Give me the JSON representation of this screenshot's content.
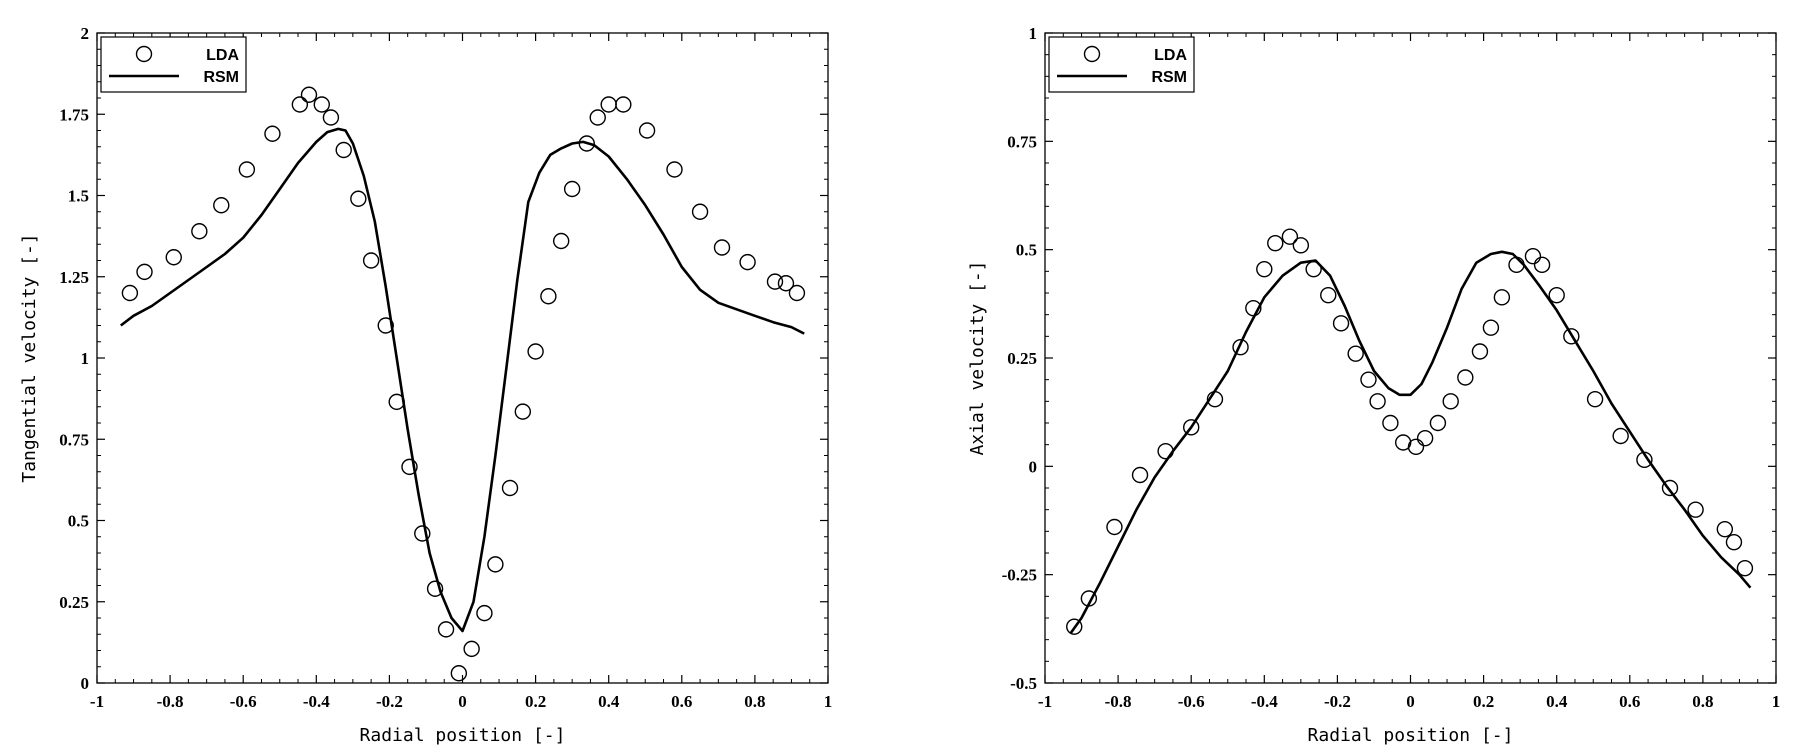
{
  "chart_data": [
    {
      "type": "scatter",
      "title": "",
      "xlabel": "Radial position [-]",
      "ylabel": "Tangential velocity [-]",
      "xlim": [
        -1,
        1
      ],
      "ylim": [
        0,
        2
      ],
      "xticks": [
        "-1",
        "-0.8",
        "-0.6",
        "-0.4",
        "-0.2",
        "0",
        "0.2",
        "0.4",
        "0.6",
        "0.8",
        "1"
      ],
      "yticks": [
        "0",
        "0.25",
        "0.5",
        "0.75",
        "1",
        "1.25",
        "1.5",
        "1.75",
        "2"
      ],
      "grid": false,
      "legend": "top-left",
      "series": [
        {
          "name": "LDA",
          "kind": "markers",
          "marker": "open-circle",
          "x": [
            -0.91,
            -0.87,
            -0.79,
            -0.72,
            -0.66,
            -0.59,
            -0.52,
            -0.445,
            -0.42,
            -0.385,
            -0.36,
            -0.325,
            -0.285,
            -0.25,
            -0.21,
            -0.18,
            -0.145,
            -0.11,
            -0.075,
            -0.045,
            -0.01,
            0.025,
            0.06,
            0.09,
            0.13,
            0.165,
            0.2,
            0.235,
            0.27,
            0.3,
            0.34,
            0.37,
            0.4,
            0.44,
            0.505,
            0.58,
            0.65,
            0.71,
            0.78,
            0.855,
            0.885,
            0.915
          ],
          "y": [
            1.2,
            1.265,
            1.31,
            1.39,
            1.47,
            1.58,
            1.69,
            1.78,
            1.81,
            1.78,
            1.74,
            1.64,
            1.49,
            1.3,
            1.1,
            0.865,
            0.665,
            0.46,
            0.29,
            0.165,
            0.03,
            0.105,
            0.215,
            0.365,
            0.6,
            0.835,
            1.02,
            1.19,
            1.36,
            1.52,
            1.66,
            1.74,
            1.78,
            1.78,
            1.7,
            1.58,
            1.45,
            1.34,
            1.295,
            1.235,
            1.23,
            1.2
          ]
        },
        {
          "name": "RSM",
          "kind": "line",
          "x": [
            -0.935,
            -0.9,
            -0.85,
            -0.8,
            -0.75,
            -0.7,
            -0.65,
            -0.6,
            -0.55,
            -0.5,
            -0.45,
            -0.4,
            -0.37,
            -0.34,
            -0.32,
            -0.3,
            -0.27,
            -0.24,
            -0.21,
            -0.18,
            -0.15,
            -0.12,
            -0.09,
            -0.06,
            -0.03,
            0,
            0.03,
            0.06,
            0.09,
            0.12,
            0.15,
            0.18,
            0.21,
            0.24,
            0.27,
            0.3,
            0.33,
            0.36,
            0.4,
            0.45,
            0.5,
            0.55,
            0.6,
            0.65,
            0.7,
            0.75,
            0.8,
            0.85,
            0.9,
            0.935
          ],
          "y": [
            1.1,
            1.13,
            1.16,
            1.2,
            1.24,
            1.28,
            1.32,
            1.37,
            1.44,
            1.52,
            1.6,
            1.665,
            1.695,
            1.705,
            1.7,
            1.66,
            1.56,
            1.42,
            1.22,
            1.0,
            0.78,
            0.58,
            0.4,
            0.28,
            0.2,
            0.16,
            0.25,
            0.45,
            0.7,
            0.97,
            1.24,
            1.48,
            1.57,
            1.625,
            1.645,
            1.66,
            1.665,
            1.655,
            1.62,
            1.55,
            1.47,
            1.38,
            1.28,
            1.21,
            1.17,
            1.15,
            1.13,
            1.11,
            1.095,
            1.075
          ]
        }
      ]
    },
    {
      "type": "scatter",
      "title": "",
      "xlabel": "Radial position [-]",
      "ylabel": "Axial velocity [-]",
      "xlim": [
        -1,
        1
      ],
      "ylim": [
        -0.5,
        1
      ],
      "xticks": [
        "-1",
        "-0.8",
        "-0.6",
        "-0.4",
        "-0.2",
        "0",
        "0.2",
        "0.4",
        "0.6",
        "0.8",
        "1"
      ],
      "yticks": [
        "-0.5",
        "-0.25",
        "0",
        "0.25",
        "0.5",
        "0.75",
        "1"
      ],
      "grid": false,
      "legend": "top-left",
      "series": [
        {
          "name": "LDA",
          "kind": "markers",
          "marker": "open-circle",
          "x": [
            -0.92,
            -0.88,
            -0.81,
            -0.74,
            -0.67,
            -0.6,
            -0.535,
            -0.465,
            -0.43,
            -0.4,
            -0.37,
            -0.33,
            -0.3,
            -0.265,
            -0.225,
            -0.19,
            -0.15,
            -0.115,
            -0.09,
            -0.055,
            -0.02,
            0.015,
            0.04,
            0.075,
            0.11,
            0.15,
            0.19,
            0.22,
            0.25,
            0.29,
            0.335,
            0.36,
            0.4,
            0.44,
            0.505,
            0.575,
            0.64,
            0.71,
            0.78,
            0.86,
            0.885,
            0.915
          ],
          "y": [
            -0.37,
            -0.305,
            -0.14,
            -0.02,
            0.035,
            0.09,
            0.155,
            0.275,
            0.365,
            0.455,
            0.515,
            0.53,
            0.51,
            0.455,
            0.395,
            0.33,
            0.26,
            0.2,
            0.15,
            0.1,
            0.055,
            0.045,
            0.065,
            0.1,
            0.15,
            0.205,
            0.265,
            0.32,
            0.39,
            0.465,
            0.485,
            0.465,
            0.395,
            0.3,
            0.155,
            0.07,
            0.015,
            -0.05,
            -0.1,
            -0.145,
            -0.175,
            -0.235
          ]
        },
        {
          "name": "RSM",
          "kind": "line",
          "x": [
            -0.93,
            -0.9,
            -0.85,
            -0.8,
            -0.75,
            -0.7,
            -0.65,
            -0.6,
            -0.55,
            -0.5,
            -0.45,
            -0.4,
            -0.35,
            -0.3,
            -0.26,
            -0.22,
            -0.18,
            -0.14,
            -0.1,
            -0.06,
            -0.03,
            0,
            0.03,
            0.06,
            0.1,
            0.14,
            0.18,
            0.22,
            0.25,
            0.28,
            0.31,
            0.35,
            0.4,
            0.45,
            0.5,
            0.55,
            0.6,
            0.65,
            0.7,
            0.75,
            0.8,
            0.85,
            0.9,
            0.93
          ],
          "y": [
            -0.385,
            -0.35,
            -0.27,
            -0.185,
            -0.1,
            -0.025,
            0.035,
            0.09,
            0.155,
            0.22,
            0.31,
            0.39,
            0.44,
            0.47,
            0.475,
            0.44,
            0.37,
            0.29,
            0.22,
            0.18,
            0.165,
            0.165,
            0.19,
            0.24,
            0.32,
            0.41,
            0.47,
            0.49,
            0.495,
            0.49,
            0.465,
            0.42,
            0.36,
            0.29,
            0.22,
            0.145,
            0.08,
            0.015,
            -0.045,
            -0.1,
            -0.16,
            -0.21,
            -0.25,
            -0.28
          ]
        }
      ]
    }
  ]
}
